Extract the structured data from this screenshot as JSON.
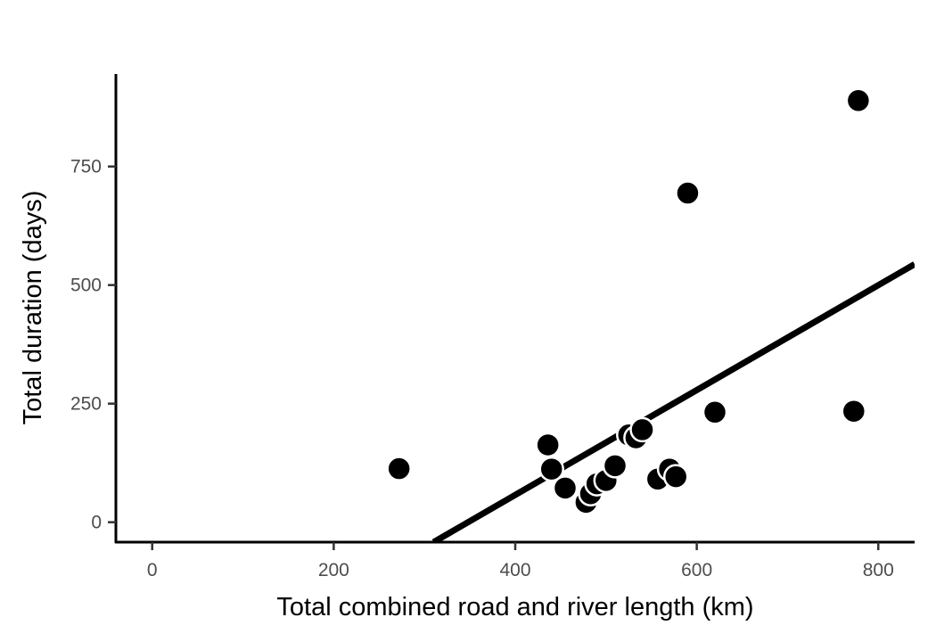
{
  "chart_data": {
    "type": "scatter",
    "title": "",
    "xlabel": "Total combined road and river length (km)",
    "ylabel": "Total duration (days)",
    "xlim": [
      -40,
      840
    ],
    "ylim": [
      -42,
      945
    ],
    "x_ticks": [
      0,
      200,
      400,
      600,
      800
    ],
    "y_ticks": [
      0,
      250,
      500,
      750
    ],
    "x_tick_labels": [
      "0",
      "200",
      "400",
      "600",
      "800"
    ],
    "y_tick_labels": [
      "0",
      "250",
      "500",
      "750"
    ],
    "grid": false,
    "legend": "none",
    "series": [
      {
        "points": [
          {
            "x": 272,
            "y": 113
          },
          {
            "x": 436,
            "y": 163
          },
          {
            "x": 440,
            "y": 112
          },
          {
            "x": 455,
            "y": 72
          },
          {
            "x": 478,
            "y": 42
          },
          {
            "x": 483,
            "y": 60
          },
          {
            "x": 490,
            "y": 81
          },
          {
            "x": 500,
            "y": 88
          },
          {
            "x": 510,
            "y": 119
          },
          {
            "x": 525,
            "y": 184
          },
          {
            "x": 533,
            "y": 178
          },
          {
            "x": 540,
            "y": 195
          },
          {
            "x": 557,
            "y": 91
          },
          {
            "x": 570,
            "y": 112
          },
          {
            "x": 577,
            "y": 96
          },
          {
            "x": 590,
            "y": 694
          },
          {
            "x": 620,
            "y": 232
          },
          {
            "x": 773,
            "y": 234
          },
          {
            "x": 778,
            "y": 889
          }
        ]
      }
    ],
    "trend_line": {
      "type": "linear",
      "x_start": 310,
      "y_start": -42,
      "x_end": 840,
      "y_end": 544
    },
    "colors": {
      "points": "#000000",
      "point_outline": "#ffffff",
      "trend_line": "#000000",
      "axis": "#000000",
      "tick_labels": "#4d4d4d"
    }
  }
}
